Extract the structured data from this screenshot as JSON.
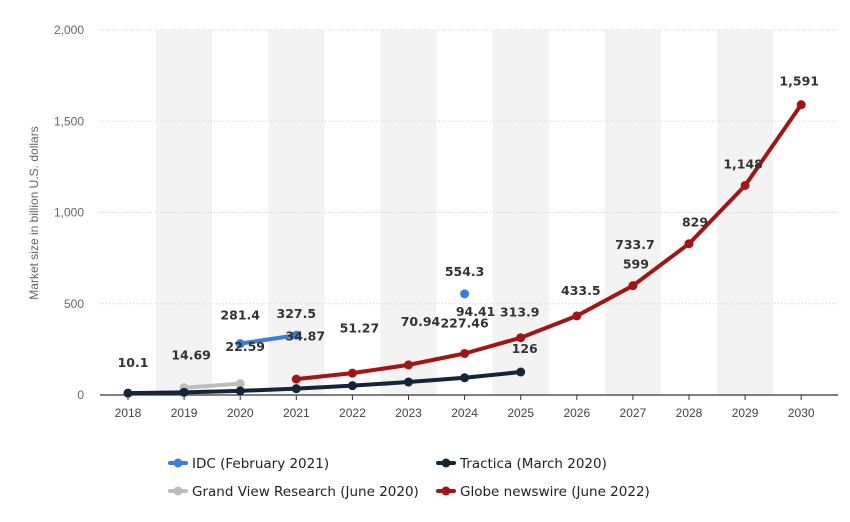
{
  "chart_data": {
    "type": "line",
    "title": "",
    "xlabel": "",
    "ylabel": "Market size in billion U.S. dollars",
    "ylim": [
      0,
      2000
    ],
    "yticks": [
      0,
      500,
      1000,
      1500,
      2000
    ],
    "ytick_labels": [
      "0",
      "500",
      "1,000",
      "1,500",
      "2,000"
    ],
    "categories": [
      "2018",
      "2019",
      "2020",
      "2021",
      "2022",
      "2023",
      "2024",
      "2025",
      "2026",
      "2027",
      "2028",
      "2029",
      "2030"
    ],
    "grid": true,
    "legend_position": "bottom",
    "series": [
      {
        "name": "IDC (February 2021)",
        "color": "#3b7dd8",
        "points": [
          {
            "x": "2020",
            "y": 281.4,
            "label": "281.4"
          },
          {
            "x": "2021",
            "y": 327.5,
            "label": "327.5"
          },
          {
            "x": "2024",
            "y": 554.3,
            "label": "554.3"
          }
        ]
      },
      {
        "name": "Tractica (March 2020)",
        "color": "#14253a",
        "points": [
          {
            "x": "2018",
            "y": 10.1,
            "label": "10.1"
          },
          {
            "x": "2019",
            "y": 14.69,
            "label": "14.69"
          },
          {
            "x": "2020",
            "y": 22.59,
            "label": "22.59"
          },
          {
            "x": "2021",
            "y": 34.87,
            "label": "34.87"
          },
          {
            "x": "2022",
            "y": 51.27,
            "label": "51.27"
          },
          {
            "x": "2023",
            "y": 70.94,
            "label": "70.94"
          },
          {
            "x": "2024",
            "y": 94.41,
            "label": "94.41"
          },
          {
            "x": "2025",
            "y": 126,
            "label": "126"
          }
        ]
      },
      {
        "name": "Grand View Research (June 2020)",
        "color": "#bdbdbd",
        "points": [
          {
            "x": "2019",
            "y": 39.9,
            "label": ""
          },
          {
            "x": "2020",
            "y": 62.35,
            "label": ""
          }
        ]
      },
      {
        "name": "Globe newswire (June 2022)",
        "color": "#a31515",
        "points": [
          {
            "x": "2021",
            "y": 87,
            "label": ""
          },
          {
            "x": "2022",
            "y": 119.8,
            "label": ""
          },
          {
            "x": "2023",
            "y": 165,
            "label": ""
          },
          {
            "x": "2024",
            "y": 227.46,
            "label": "227.46"
          },
          {
            "x": "2025",
            "y": 313.9,
            "label": "313.9"
          },
          {
            "x": "2026",
            "y": 433.5,
            "label": "433.5"
          },
          {
            "x": "2027",
            "y": 599,
            "label": "599"
          },
          {
            "x": "2028",
            "y": 829,
            "label": "829"
          },
          {
            "x": "2029",
            "y": 1148,
            "label": "1,148"
          },
          {
            "x": "2030",
            "y": 1591,
            "label": "1,591"
          }
        ]
      }
    ],
    "extra_labels": [
      {
        "x": "2027",
        "y": 733.7,
        "label": "733.7"
      }
    ],
    "legend_order": [
      "IDC (February 2021)",
      "Tractica (March 2020)",
      "Grand View Research (June 2020)",
      "Globe newswire (June 2022)"
    ]
  }
}
